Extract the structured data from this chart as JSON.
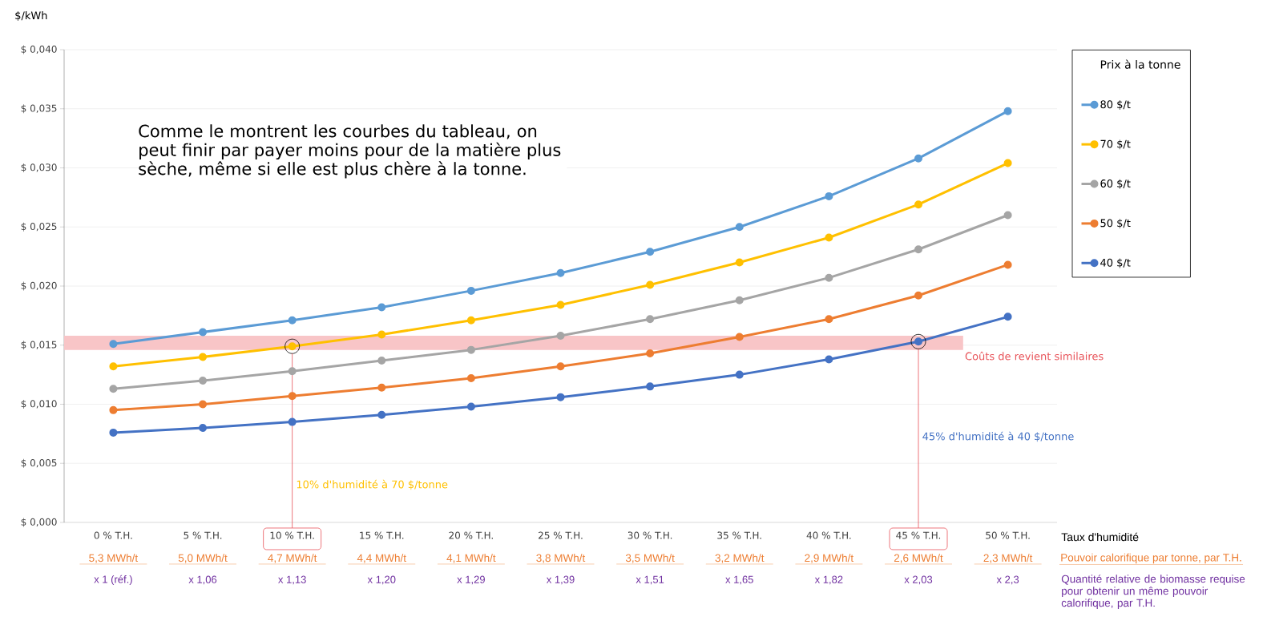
{
  "chart_data": {
    "type": "line",
    "ylabel": "$/kWh",
    "xlabel": "Taux d'humidité",
    "legend_title": "Prix à la tonne",
    "categories": [
      "0 % T.H.",
      "5 % T.H.",
      "10 % T.H.",
      "15 % T.H.",
      "20 % T.H.",
      "25 % T.H.",
      "30 % T.H.",
      "35 % T.H.",
      "40 % T.H.",
      "45 % T.H.",
      "50 % T.H."
    ],
    "series": [
      {
        "name": "80 $/t",
        "color": "#5b9bd5",
        "values": [
          0.0151,
          0.0161,
          0.0171,
          0.0182,
          0.0196,
          0.0211,
          0.0229,
          0.025,
          0.0276,
          0.0308,
          0.0348
        ]
      },
      {
        "name": "70 $/t",
        "color": "#ffc000",
        "values": [
          0.0132,
          0.014,
          0.0149,
          0.0159,
          0.0171,
          0.0184,
          0.0201,
          0.022,
          0.0241,
          0.0269,
          0.0304
        ]
      },
      {
        "name": "60 $/t",
        "color": "#a5a5a5",
        "values": [
          0.0113,
          0.012,
          0.0128,
          0.0137,
          0.0146,
          0.0158,
          0.0172,
          0.0188,
          0.0207,
          0.0231,
          0.026
        ]
      },
      {
        "name": "50 $/t",
        "color": "#ed7d31",
        "values": [
          0.0095,
          0.01,
          0.0107,
          0.0114,
          0.0122,
          0.0132,
          0.0143,
          0.0157,
          0.0172,
          0.0192,
          0.0218
        ]
      },
      {
        "name": "40 $/t",
        "color": "#4472c4",
        "values": [
          0.0076,
          0.008,
          0.0085,
          0.0091,
          0.0098,
          0.0106,
          0.0115,
          0.0125,
          0.0138,
          0.0153,
          0.0174
        ]
      }
    ],
    "ylim": [
      0,
      0.04
    ],
    "yticks": [
      {
        "value": 0,
        "label": "$ 0,000"
      },
      {
        "value": 0.005,
        "label": "$ 0,005"
      },
      {
        "value": 0.01,
        "label": "$ 0,010"
      },
      {
        "value": 0.015,
        "label": "$ 0,015"
      },
      {
        "value": 0.02,
        "label": "$ 0,020"
      },
      {
        "value": 0.025,
        "label": "$ 0,025"
      },
      {
        "value": 0.03,
        "label": "$ 0,030"
      },
      {
        "value": 0.035,
        "label": "$ 0,035"
      },
      {
        "value": 0.04,
        "label": "$ 0,040"
      }
    ],
    "grid": "y",
    "legend": "right",
    "marker": "circle",
    "ref_lines": [
      {
        "axis": "x",
        "value": "10 % T.H.",
        "color": "#e8545a"
      },
      {
        "axis": "x",
        "value": "45 % T.H.",
        "color": "#e8545a"
      }
    ],
    "bands": [
      {
        "axis": "y",
        "from": 0.0146,
        "to": 0.0158,
        "label": "Coûts de revient similaires",
        "color": "#f8c5c7"
      }
    ],
    "annotations": [
      "Comme le montrent les courbes du tableau, on peut finir par payer moins pour de la matière plus sèche, même si elle est plus chère à la tonne.",
      "10% d'humidité à 70 $/tonne",
      "45% d'humidité à 40 $/tonne",
      "Pouvoir calorifique par tonne, par T.H.",
      "Quantité relative de biomasse requise pour obtenir un même pouvoir calorifique, par T.H.",
      "5,3 MWh/t",
      "5,0 MWh/t",
      "4,7 MWh/t",
      "4,4 MWh/t",
      "4,1 MWh/t",
      "3,8 MWh/t",
      "3,5 MWh/t",
      "3,2 MWh/t",
      "2,9 MWh/t",
      "2,6 MWh/t",
      "2,3 MWh/t",
      "x 1 (réf.)",
      "x 1,06",
      "x 1,13",
      "x 1,20",
      "x 1,29",
      "x 1,39",
      "x 1,51",
      "x 1,65",
      "x 1,82",
      "x 2,03",
      "x 2,3"
    ]
  }
}
